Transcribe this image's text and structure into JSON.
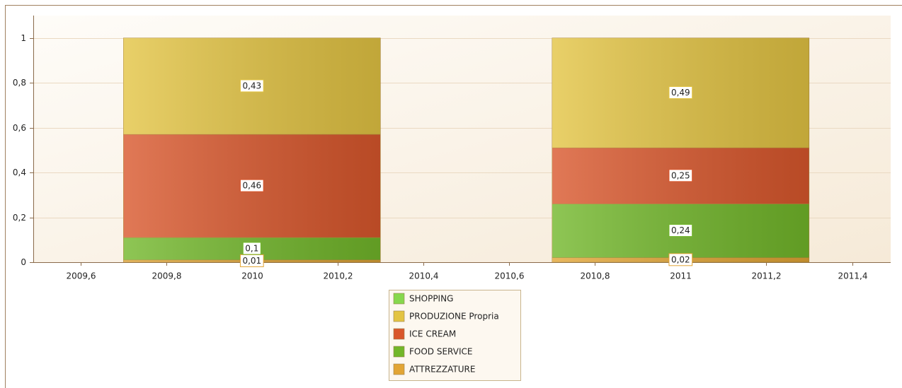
{
  "chart_data": {
    "type": "stacked_bar",
    "x": [
      2010,
      2011
    ],
    "series": [
      {
        "name": "SHOPPING",
        "color": "#86d84e",
        "values": [
          0,
          0
        ],
        "value_labels": [
          null,
          null
        ]
      },
      {
        "name": "PRODUZIONE Propria",
        "color": "#e3c443",
        "values": [
          0.43,
          0.49
        ],
        "value_labels": [
          "0,43",
          "0,49"
        ]
      },
      {
        "name": "ICE CREAM",
        "color": "#d9572c",
        "values": [
          0.46,
          0.25
        ],
        "value_labels": [
          "0,46",
          "0,25"
        ]
      },
      {
        "name": "FOOD SERVICE",
        "color": "#72b72a",
        "values": [
          0.1,
          0.24
        ],
        "value_labels": [
          "0,1",
          "0,24"
        ]
      },
      {
        "name": "ATTREZZATURE",
        "color": "#e2a535",
        "values": [
          0.01,
          0.02
        ],
        "value_labels": [
          "0,01",
          "0,02"
        ]
      }
    ],
    "xlim": [
      2009.49,
      2011.49
    ],
    "xticks": [
      {
        "value": 2009.6,
        "label": "2009,6"
      },
      {
        "value": 2009.8,
        "label": "2009,8"
      },
      2010,
      {
        "value": 2010.2,
        "label": "2010,2"
      },
      {
        "value": 2010.4,
        "label": "2010,4"
      },
      {
        "value": 2010.6,
        "label": "2010,6"
      },
      {
        "value": 2010.8,
        "label": "2010,8"
      },
      2011,
      {
        "value": 2011.2,
        "label": "2011,2"
      },
      {
        "value": 2011.4,
        "label": "2011,4"
      }
    ],
    "ylim": [
      0,
      1.1
    ],
    "yticks": [
      0,
      {
        "value": 0.2,
        "label": "0,2"
      },
      {
        "value": 0.4,
        "label": "0,4"
      },
      {
        "value": 0.6,
        "label": "0,6"
      },
      {
        "value": 0.8,
        "label": "0,8"
      },
      1
    ],
    "grid": true,
    "legend": "bottom"
  }
}
